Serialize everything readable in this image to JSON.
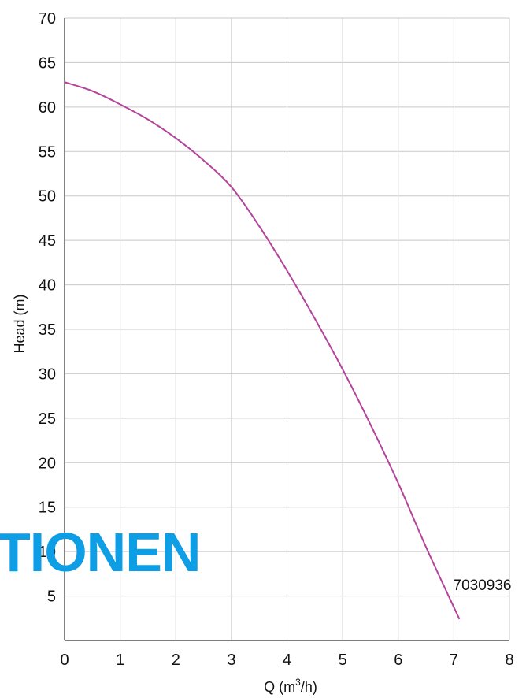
{
  "chart_data": {
    "type": "line",
    "xlabel_prefix": "Q (m",
    "xlabel_sup": "3",
    "xlabel_suffix": "/h)",
    "ylabel": "Head (m)",
    "xlim": [
      0,
      8
    ],
    "ylim": [
      0,
      70
    ],
    "xticks": [
      "0",
      "1",
      "2",
      "3",
      "4",
      "5",
      "6",
      "7",
      "8"
    ],
    "yticks": [
      "5",
      "10",
      "15",
      "20",
      "25",
      "30",
      "35",
      "40",
      "45",
      "50",
      "55",
      "60",
      "65",
      "70"
    ],
    "grid": true,
    "series": [
      {
        "color": "#b4439c",
        "x": [
          0,
          0.5,
          1,
          1.5,
          2,
          2.5,
          3,
          3.5,
          4,
          4.5,
          5,
          5.5,
          6,
          6.5,
          7.1
        ],
        "y": [
          62.8,
          61.8,
          60.3,
          58.6,
          56.5,
          54.0,
          51.0,
          46.6,
          41.6,
          36.2,
          30.5,
          24.3,
          17.7,
          10.5,
          2.4
        ]
      }
    ],
    "annotation": {
      "text": "7030936",
      "x": 7.2,
      "y": 6.3
    }
  },
  "watermark": {
    "text": "TIONEN",
    "color": "#0d9ee6"
  }
}
